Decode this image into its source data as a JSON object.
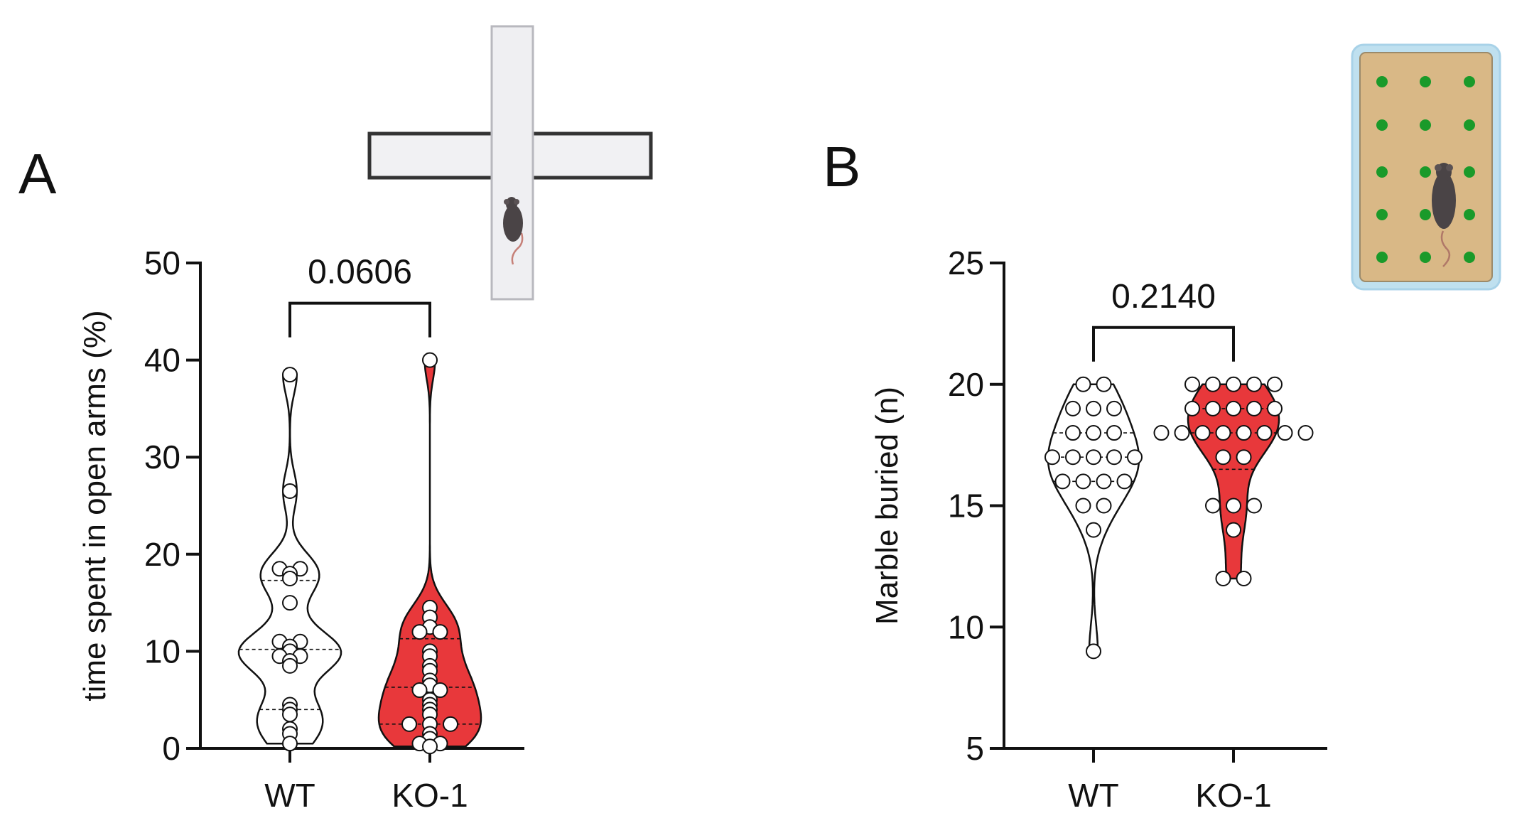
{
  "panels": {
    "A": {
      "letter": "A"
    },
    "B": {
      "letter": "B"
    }
  },
  "colors": {
    "WT_fill": "#ffffff",
    "KO_fill": "#e8383b",
    "marble_bedding": "#d9b886",
    "marble_ball": "#1a9a2a"
  },
  "chart_data": [
    {
      "type": "violin",
      "panel": "A",
      "ylabel": "time spent in open arms (%)",
      "ylim": [
        0,
        50
      ],
      "yticks": [
        0,
        10,
        20,
        30,
        40,
        50
      ],
      "categories": [
        "WT",
        "KO-1"
      ],
      "comparison": {
        "p_value": "0.0606",
        "between": [
          "WT",
          "KO-1"
        ]
      },
      "series": [
        {
          "category": "WT",
          "fill": "#ffffff",
          "values": [
            38.5,
            26.5,
            18.5,
            18.5,
            18,
            17.5,
            15,
            11,
            11,
            10.5,
            10,
            9.5,
            9.5,
            9,
            8.5,
            4.5,
            4,
            3.5,
            2,
            1.5,
            0.5
          ],
          "median": 10.2,
          "q1": 4.0,
          "q3": 17.3
        },
        {
          "category": "KO-1",
          "fill": "#e8383b",
          "values": [
            40,
            14.5,
            13.5,
            12.5,
            12,
            12,
            10,
            9.5,
            8.5,
            8,
            7,
            6.5,
            6,
            6,
            5,
            4.5,
            4,
            3.5,
            2.5,
            2.5,
            2.5,
            1.5,
            1,
            0.5,
            0.5,
            0.2
          ],
          "median": 6.3,
          "q1": 2.5,
          "q3": 11.3
        }
      ],
      "xlabels": [
        "WT",
        "KO-1"
      ]
    },
    {
      "type": "violin",
      "panel": "B",
      "ylabel": "Marble buried (n)",
      "ylim": [
        5,
        25
      ],
      "yticks": [
        5,
        10,
        15,
        20,
        25
      ],
      "categories": [
        "WT",
        "KO-1"
      ],
      "comparison": {
        "p_value": "0.2140",
        "between": [
          "WT",
          "KO-1"
        ]
      },
      "series": [
        {
          "category": "WT",
          "fill": "#ffffff",
          "values": [
            20,
            20,
            19,
            19,
            19,
            18,
            18,
            18,
            17,
            17,
            17,
            17,
            17,
            16,
            16,
            16,
            16,
            15,
            15,
            14,
            9
          ],
          "median": 17,
          "q1": 16,
          "q3": 18
        },
        {
          "category": "KO-1",
          "fill": "#e8383b",
          "values": [
            20,
            20,
            20,
            20,
            20,
            19,
            19,
            19,
            19,
            19,
            18,
            18,
            18,
            18,
            18,
            18,
            18,
            18,
            17,
            17,
            15,
            15,
            15,
            14,
            12,
            12
          ],
          "median": 18,
          "q1": 16.5,
          "q3": 19
        }
      ],
      "xlabels": [
        "WT",
        "KO-1"
      ]
    }
  ]
}
